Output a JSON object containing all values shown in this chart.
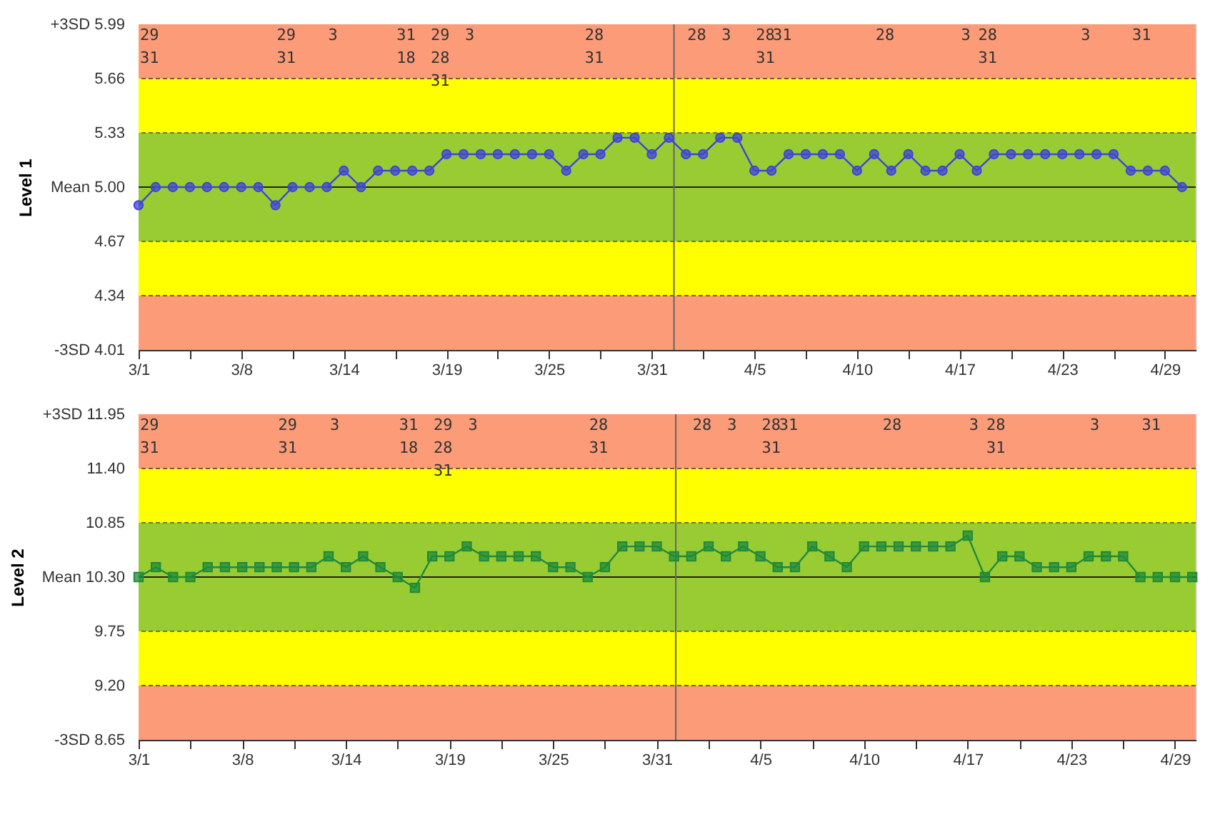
{
  "chart_data": [
    {
      "type": "line",
      "ylabel": "Level 1",
      "marker": "circle",
      "line_style": "solid",
      "categories": [
        "3/1",
        null,
        null,
        null,
        null,
        null,
        "3/8",
        null,
        null,
        null,
        null,
        null,
        "3/14",
        null,
        null,
        null,
        null,
        null,
        "3/19",
        null,
        null,
        null,
        null,
        null,
        "3/25",
        null,
        null,
        null,
        null,
        null,
        "3/31",
        null,
        null,
        null,
        null,
        null,
        "4/5",
        null,
        null,
        null,
        null,
        null,
        "4/10",
        null,
        null,
        null,
        null,
        null,
        "4/17",
        null,
        null,
        null,
        null,
        null,
        "4/23",
        null,
        null,
        null,
        null,
        null,
        "4/29",
        null
      ],
      "series": [
        {
          "color": "#3f45d6",
          "values": [
            4.89,
            5.0,
            5.0,
            5.0,
            5.0,
            5.0,
            5.0,
            5.0,
            4.89,
            5.0,
            5.0,
            5.0,
            5.1,
            5.0,
            5.1,
            5.1,
            5.1,
            5.1,
            5.2,
            5.2,
            5.2,
            5.2,
            5.2,
            5.2,
            5.2,
            5.1,
            5.2,
            5.2,
            5.3,
            5.3,
            5.2,
            5.3,
            5.2,
            5.2,
            5.3,
            5.3,
            5.1,
            5.1,
            5.2,
            5.2,
            5.2,
            5.2,
            5.1,
            5.2,
            5.1,
            5.2,
            5.1,
            5.1,
            5.2,
            5.1,
            5.2,
            5.2,
            5.2,
            5.2,
            5.2,
            5.2,
            5.2,
            5.2,
            5.1,
            5.1,
            5.1,
            5.0
          ]
        }
      ],
      "ylim": [
        4.01,
        5.99
      ],
      "yticks": [
        {
          "value": 4.01,
          "label": "-3SD 4.01"
        },
        4.34,
        4.67,
        {
          "value": 5.0,
          "label": "Mean 5.00"
        },
        5.33,
        5.66,
        {
          "value": 5.99,
          "label": "+3SD 5.99"
        }
      ],
      "bands": [
        {
          "axis": "y",
          "from": 4.01,
          "to": 4.34,
          "color": "#fb9b78"
        },
        {
          "axis": "y",
          "from": 4.34,
          "to": 4.67,
          "color": "#ffff00"
        },
        {
          "axis": "y",
          "from": 4.67,
          "to": 5.33,
          "color": "#99cc33"
        },
        {
          "axis": "y",
          "from": 5.33,
          "to": 5.66,
          "color": "#ffff00"
        },
        {
          "axis": "y",
          "from": 5.66,
          "to": 5.99,
          "color": "#fb9b78"
        }
      ],
      "ref_lines": [
        {
          "axis": "y",
          "value": 4.34,
          "color": "#7a5a3a",
          "line_style": "dashed"
        },
        {
          "axis": "y",
          "value": 4.67,
          "color": "#6a7a2a",
          "line_style": "dashed"
        },
        {
          "axis": "y",
          "value": 5.0,
          "color": "#222222",
          "line_style": "solid"
        },
        {
          "axis": "y",
          "value": 5.33,
          "color": "#6a7a2a",
          "line_style": "dashed"
        },
        {
          "axis": "y",
          "value": 5.66,
          "color": "#7a5a3a",
          "line_style": "dashed"
        },
        {
          "axis": "x",
          "value": null,
          "color": "#666666",
          "line_style": "solid"
        }
      ],
      "annotations": [
        "29",
        "31",
        "29",
        "31",
        "3",
        "31",
        "18",
        "29",
        "28",
        "31",
        "3",
        "28",
        "31",
        "28",
        "3",
        "28",
        "31",
        "31",
        "28",
        "3",
        "28",
        "31",
        "3",
        "31"
      ]
    },
    {
      "type": "line",
      "ylabel": "Level 2",
      "marker": "square",
      "line_style": "solid",
      "categories": [
        "3/1",
        null,
        null,
        null,
        null,
        null,
        "3/8",
        null,
        null,
        null,
        null,
        null,
        "3/14",
        null,
        null,
        null,
        null,
        null,
        "3/19",
        null,
        null,
        null,
        null,
        null,
        "3/25",
        null,
        null,
        null,
        null,
        null,
        "3/31",
        null,
        null,
        null,
        null,
        null,
        "4/5",
        null,
        null,
        null,
        null,
        null,
        "4/10",
        null,
        null,
        null,
        null,
        null,
        "4/17",
        null,
        null,
        null,
        null,
        null,
        "4/23",
        null,
        null,
        null,
        null,
        null,
        "4/29",
        null
      ],
      "series": [
        {
          "color": "#1f8a3a",
          "values": [
            10.3,
            10.4,
            10.3,
            10.3,
            10.4,
            10.4,
            10.4,
            10.4,
            10.4,
            10.4,
            10.4,
            10.51,
            10.4,
            10.51,
            10.4,
            10.3,
            10.19,
            10.51,
            10.51,
            10.61,
            10.51,
            10.51,
            10.51,
            10.51,
            10.4,
            10.4,
            10.3,
            10.4,
            10.61,
            10.61,
            10.61,
            10.51,
            10.51,
            10.61,
            10.51,
            10.61,
            10.51,
            10.4,
            10.4,
            10.61,
            10.51,
            10.4,
            10.61,
            10.61,
            10.61,
            10.61,
            10.61,
            10.61,
            10.72,
            10.3,
            10.51,
            10.51,
            10.4,
            10.4,
            10.4,
            10.51,
            10.51,
            10.51,
            10.3,
            10.3,
            10.3,
            10.3
          ]
        }
      ],
      "ylim": [
        8.65,
        11.95
      ],
      "yticks": [
        {
          "value": 8.65,
          "label": "-3SD 8.65"
        },
        {
          "value": 9.2,
          "label": "9.20"
        },
        9.75,
        {
          "value": 10.3,
          "label": "Mean 10.30"
        },
        10.85,
        {
          "value": 11.4,
          "label": "11.40"
        },
        {
          "value": 11.95,
          "label": "+3SD 11.95"
        }
      ],
      "bands": [
        {
          "axis": "y",
          "from": 8.65,
          "to": 9.2,
          "color": "#fb9b78"
        },
        {
          "axis": "y",
          "from": 9.2,
          "to": 9.75,
          "color": "#ffff00"
        },
        {
          "axis": "y",
          "from": 9.75,
          "to": 10.85,
          "color": "#99cc33"
        },
        {
          "axis": "y",
          "from": 10.85,
          "to": 11.4,
          "color": "#ffff00"
        },
        {
          "axis": "y",
          "from": 11.4,
          "to": 11.95,
          "color": "#fb9b78"
        }
      ],
      "ref_lines": [
        {
          "axis": "y",
          "value": 9.2,
          "color": "#7a5a3a",
          "line_style": "dashed"
        },
        {
          "axis": "y",
          "value": 9.75,
          "color": "#6a7a2a",
          "line_style": "dashed"
        },
        {
          "axis": "y",
          "value": 10.3,
          "color": "#222222",
          "line_style": "solid"
        },
        {
          "axis": "y",
          "value": 10.85,
          "color": "#6a7a2a",
          "line_style": "dashed"
        },
        {
          "axis": "y",
          "value": 11.4,
          "color": "#7a5a3a",
          "line_style": "dashed"
        },
        {
          "axis": "x",
          "value": null,
          "color": "#666666",
          "line_style": "solid"
        }
      ],
      "annotations": [
        "29",
        "31",
        "29",
        "31",
        "3",
        "31",
        "18",
        "29",
        "28",
        "31",
        "3",
        "28",
        "31",
        "28",
        "3",
        "28",
        "31",
        "31",
        "28",
        "3",
        "28",
        "31",
        "3",
        "31"
      ]
    }
  ]
}
